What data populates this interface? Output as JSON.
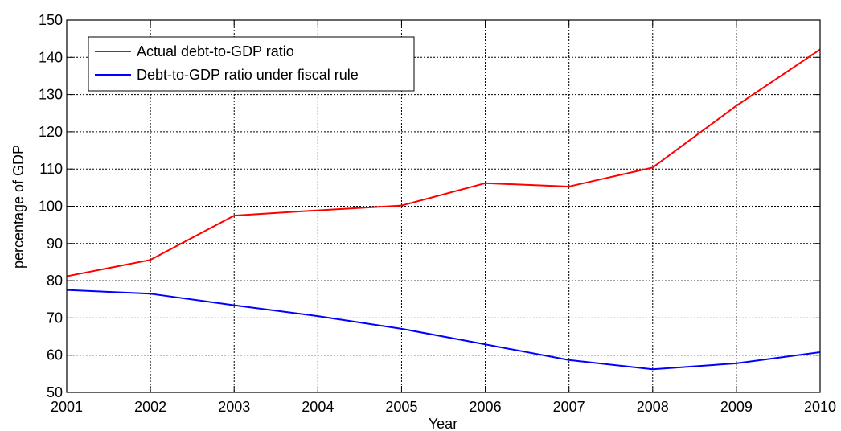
{
  "chart_data": {
    "type": "line",
    "title": "",
    "xlabel": "Year",
    "ylabel": "percentage of GDP",
    "x": [
      2001,
      2002,
      2003,
      2004,
      2005,
      2006,
      2007,
      2008,
      2009,
      2010
    ],
    "xlim": [
      2001,
      2010
    ],
    "ylim": [
      50,
      150
    ],
    "xticks": [
      "2001",
      "2002",
      "2003",
      "2004",
      "2005",
      "2006",
      "2007",
      "2008",
      "2009",
      "2010"
    ],
    "yticks": [
      "50",
      "60",
      "70",
      "80",
      "90",
      "100",
      "110",
      "120",
      "130",
      "140",
      "150"
    ],
    "grid": true,
    "legend_position": "top-left",
    "series": [
      {
        "name": "Actual debt-to-GDP ratio",
        "color": "#ff0000",
        "values": [
          81.2,
          85.6,
          97.5,
          98.9,
          100.2,
          106.2,
          105.3,
          110.4,
          127.0,
          142.1
        ]
      },
      {
        "name": "Debt-to-GDP ratio under fiscal rule",
        "color": "#0000ff",
        "values": [
          77.5,
          76.5,
          73.4,
          70.5,
          67.1,
          62.9,
          58.7,
          56.2,
          57.8,
          60.8
        ]
      }
    ]
  }
}
